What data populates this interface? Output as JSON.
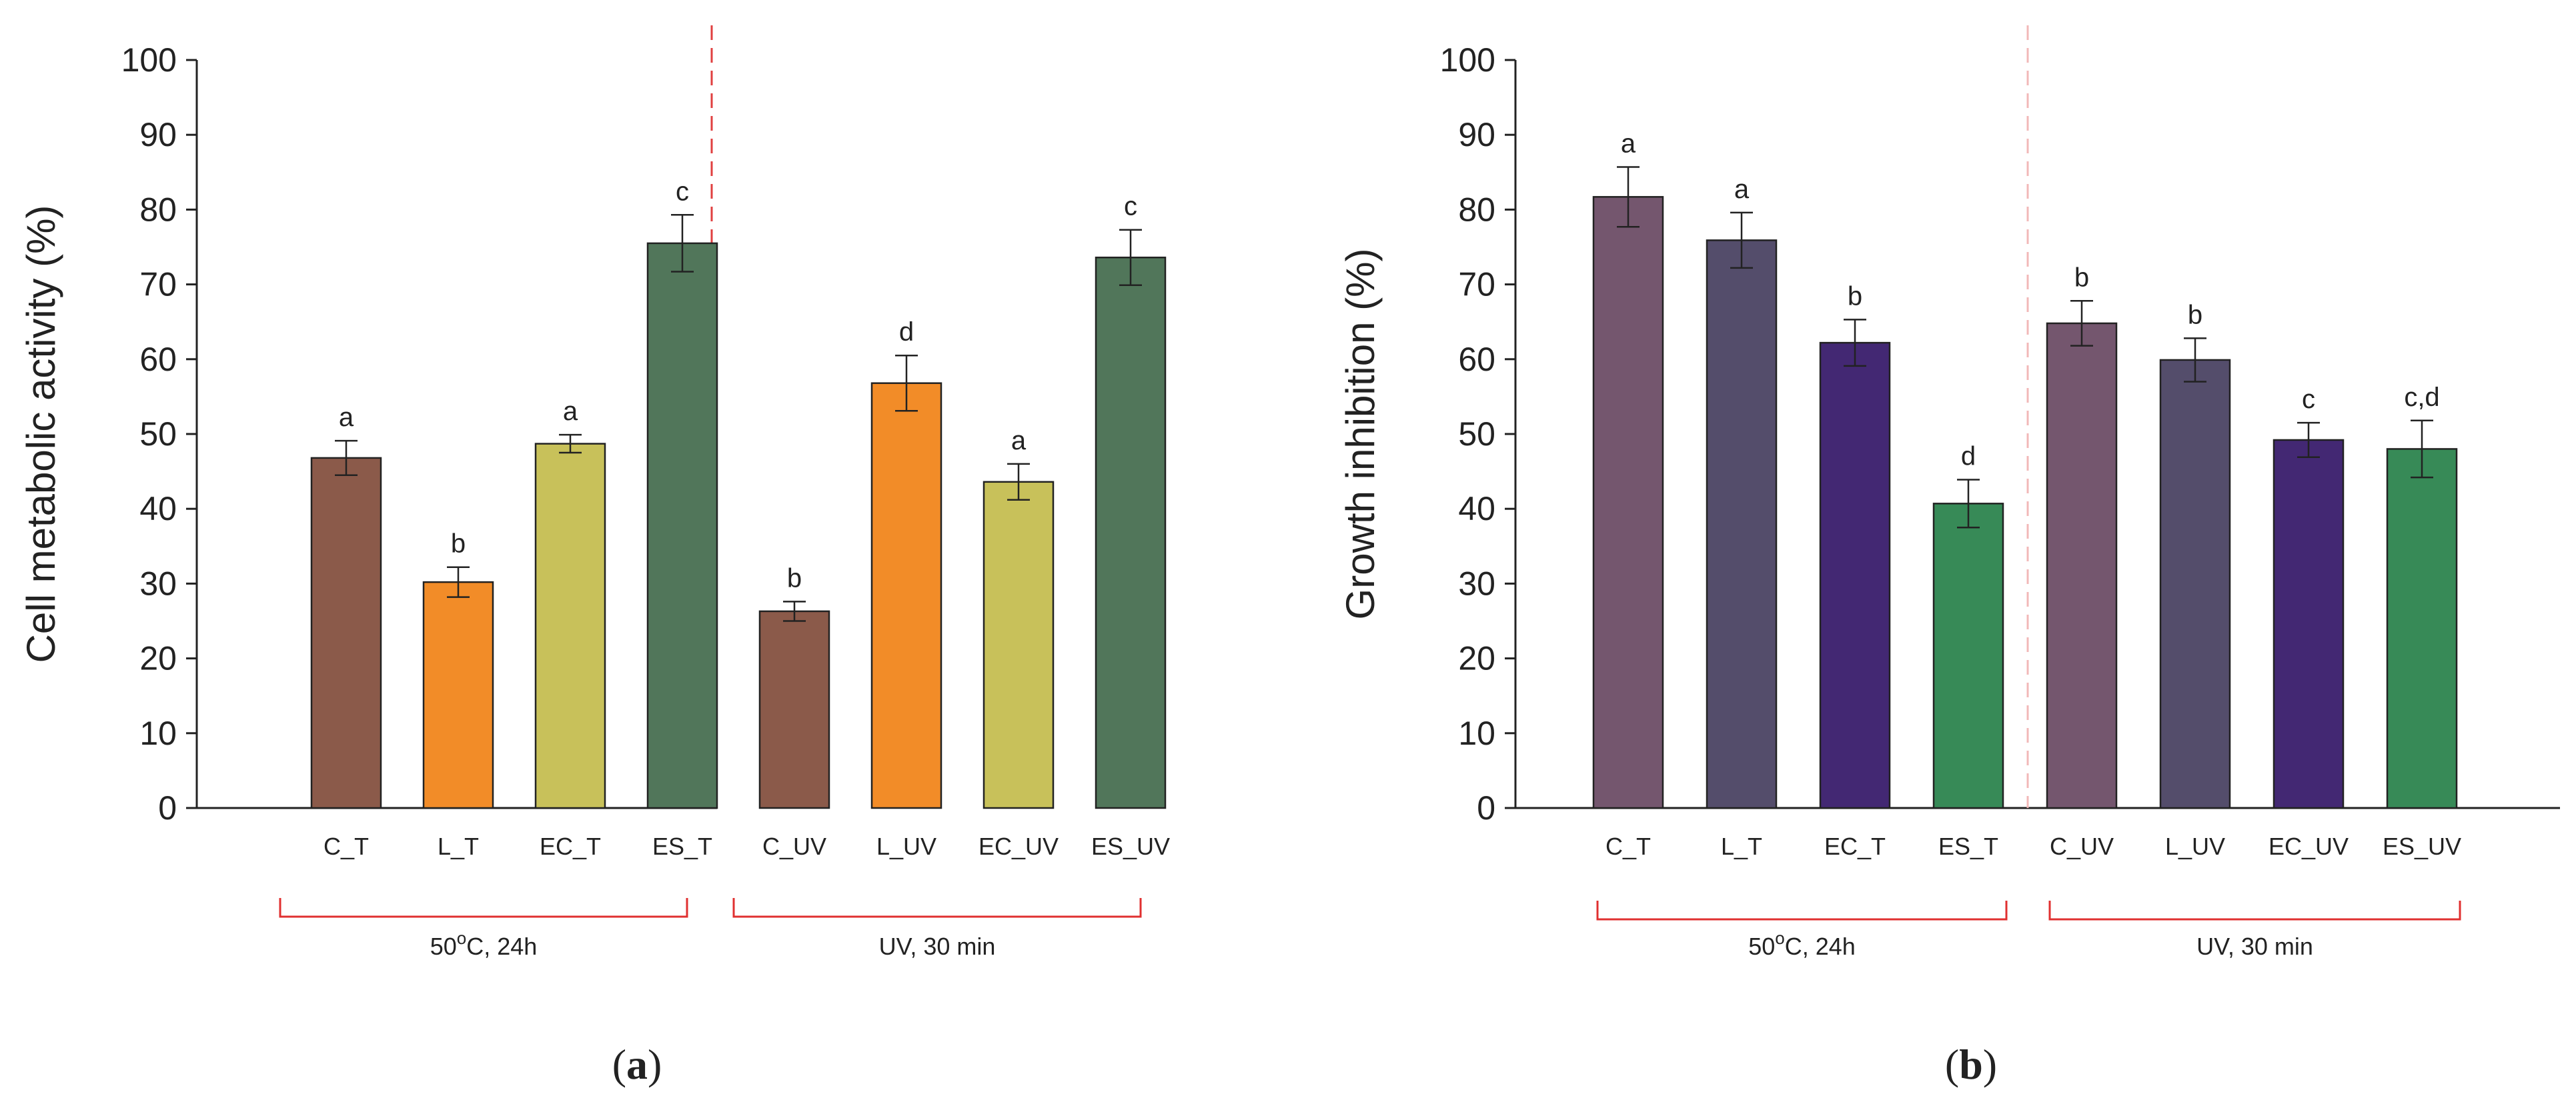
{
  "chart_data": [
    {
      "type": "bar",
      "panel_label_open": "(",
      "panel_label_letter": "a",
      "panel_label_close": ")",
      "ylabel": "Cell metabolic activity (%)",
      "xlabel": "",
      "ylim": [
        0,
        100
      ],
      "yticks": [
        0,
        10,
        20,
        30,
        40,
        50,
        60,
        70,
        80,
        90,
        100
      ],
      "categories": [
        "C_T",
        "L_T",
        "EC_T",
        "ES_T",
        "C_UV",
        "L_UV",
        "EC_UV",
        "ES_UV"
      ],
      "values": [
        46.8,
        30.2,
        48.7,
        75.5,
        26.3,
        56.8,
        43.6,
        73.6
      ],
      "errors": [
        2.3,
        2.0,
        1.2,
        3.8,
        1.3,
        3.7,
        2.4,
        3.7
      ],
      "significance": [
        "a",
        "b",
        "a",
        "c",
        "b",
        "d",
        "a",
        "c"
      ],
      "colors": [
        "#8b5a4a",
        "#f28c28",
        "#c8c15a",
        "#51765a",
        "#8b5a4a",
        "#f28c28",
        "#c8c15a",
        "#51765a"
      ],
      "groups": [
        {
          "label_prefix": "50",
          "label_sup": "o",
          "label_suffix": "C, 24h",
          "from": 0,
          "to": 3
        },
        {
          "label": "UV, 30 min",
          "from": 4,
          "to": 7
        }
      ],
      "divider_color": "#e04040",
      "bracket_color": "#e03030"
    },
    {
      "type": "bar",
      "panel_label_open": "(",
      "panel_label_letter": "b",
      "panel_label_close": ")",
      "ylabel": "Growth inhibition (%)",
      "xlabel": "",
      "ylim": [
        0,
        100
      ],
      "yticks": [
        0,
        10,
        20,
        30,
        40,
        50,
        60,
        70,
        80,
        90,
        100
      ],
      "categories": [
        "C_T",
        "L_T",
        "EC_T",
        "ES_T",
        "C_UV",
        "L_UV",
        "EC_UV",
        "ES_UV"
      ],
      "values": [
        81.7,
        75.9,
        62.2,
        40.7,
        64.8,
        59.9,
        49.2,
        48.0
      ],
      "errors": [
        4.0,
        3.7,
        3.1,
        3.2,
        3.0,
        2.9,
        2.3,
        3.8
      ],
      "significance": [
        "a",
        "a",
        "b",
        "d",
        "b",
        "b",
        "c",
        "c,d"
      ],
      "colors": [
        "#74566e",
        "#544d6b",
        "#432873",
        "#378a57",
        "#74566e",
        "#544d6b",
        "#432873",
        "#378a57"
      ],
      "groups": [
        {
          "label_prefix": "50",
          "label_sup": "o",
          "label_suffix": "C, 24h",
          "from": 0,
          "to": 3
        },
        {
          "label": "UV, 30 min",
          "from": 4,
          "to": 7
        }
      ],
      "divider_color": "#f2b8b8",
      "bracket_color": "#e03030"
    }
  ]
}
